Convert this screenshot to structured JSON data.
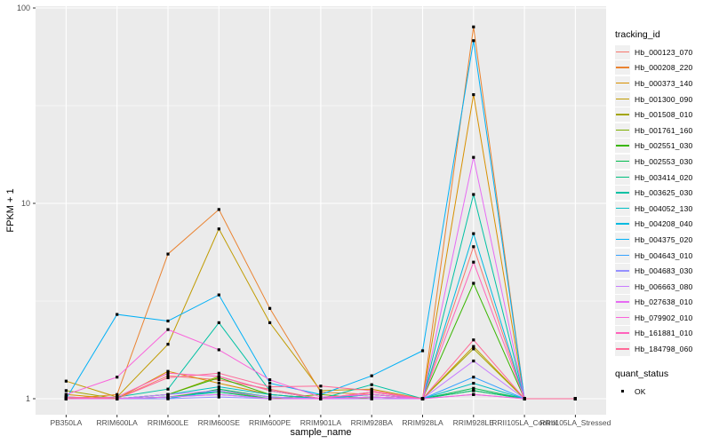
{
  "axes": {
    "y_title": "FPKM + 1",
    "x_title": "sample_name"
  },
  "legend": {
    "tracking_title": "tracking_id",
    "quant_title": "quant_status",
    "quant_items": [
      {
        "label": "OK",
        "shape": "filled-square",
        "color": "#000000"
      }
    ]
  },
  "chart_data": {
    "type": "line",
    "title": "",
    "xlabel": "sample_name",
    "ylabel": "FPKM + 1",
    "y_scale": "log10",
    "ylim": [
      1,
      100
    ],
    "y_ticks": [
      1,
      10,
      100
    ],
    "y_tick_labels": [
      "1",
      "10",
      "100"
    ],
    "y_minor_breaks": [
      3.1623,
      31.6228
    ],
    "grid": "on",
    "legend_position": "right",
    "panel_bg": "#EBEBEB",
    "grid_color": "#FFFFFF",
    "tick_text_color": "#4D4D4D",
    "tick_mark_color": "#333333",
    "point_marker": {
      "shape": "square",
      "color": "#000000",
      "size": 3.2
    },
    "categories": [
      "PB350LA",
      "RRIM600LA",
      "RRIM600LE",
      "RRIM600SE",
      "RRIM600PE",
      "RRIM901LA",
      "RRIM928BA",
      "RRIM928LA",
      "RRIM928LE",
      "RRII105LA_Control",
      "RRII105LA_Stressed"
    ],
    "series": [
      {
        "name": "Hb_000123_070",
        "color": "#F8766D",
        "values": [
          1.02,
          1.0,
          1.31,
          1.25,
          1.12,
          1.0,
          1.05,
          1.0,
          6.0,
          1.0,
          1.0
        ]
      },
      {
        "name": "Hb_000208_220",
        "color": "#EA8331",
        "values": [
          1.0,
          1.05,
          5.5,
          9.3,
          2.9,
          1.08,
          1.05,
          1.0,
          80,
          1.0,
          1.0
        ]
      },
      {
        "name": "Hb_000373_140",
        "color": "#D89000",
        "values": [
          1.05,
          1.0,
          1.38,
          1.2,
          1.05,
          1.0,
          1.08,
          1.0,
          36,
          1.0,
          1.0
        ]
      },
      {
        "name": "Hb_001300_090",
        "color": "#C09B00",
        "values": [
          1.23,
          1.02,
          1.9,
          7.4,
          2.45,
          1.1,
          1.12,
          1.0,
          1.85,
          1.0,
          1.0
        ]
      },
      {
        "name": "Hb_001508_010",
        "color": "#A3A500",
        "values": [
          1.1,
          1.0,
          1.05,
          1.3,
          1.1,
          1.0,
          1.02,
          1.0,
          1.8,
          1.0,
          1.0
        ]
      },
      {
        "name": "Hb_001761_160",
        "color": "#7CAE00",
        "values": [
          1.0,
          1.0,
          1.02,
          1.1,
          1.0,
          1.05,
          1.0,
          1.0,
          1.1,
          1.0,
          1.0
        ]
      },
      {
        "name": "Hb_002551_030",
        "color": "#39B600",
        "values": [
          1.0,
          1.0,
          1.05,
          1.28,
          1.05,
          1.0,
          1.02,
          1.0,
          3.9,
          1.0,
          1.0
        ]
      },
      {
        "name": "Hb_002553_030",
        "color": "#00BB4E",
        "values": [
          1.0,
          1.0,
          1.0,
          1.12,
          1.02,
          1.0,
          1.0,
          1.0,
          1.13,
          1.0,
          1.0
        ]
      },
      {
        "name": "Hb_003414_020",
        "color": "#00BF7D",
        "values": [
          1.0,
          1.0,
          1.02,
          1.08,
          1.0,
          1.0,
          1.05,
          1.0,
          1.1,
          1.0,
          1.0
        ]
      },
      {
        "name": "Hb_003625_030",
        "color": "#00C1A3",
        "values": [
          1.0,
          1.02,
          1.12,
          2.45,
          1.1,
          1.0,
          1.18,
          1.0,
          11.1,
          1.0,
          1.0
        ]
      },
      {
        "name": "Hb_004052_130",
        "color": "#00BFC4",
        "values": [
          1.02,
          1.0,
          1.05,
          1.15,
          1.05,
          1.0,
          1.0,
          1.0,
          1.2,
          1.0,
          1.0
        ]
      },
      {
        "name": "Hb_004208_040",
        "color": "#00BAE0",
        "values": [
          1.0,
          1.0,
          1.0,
          1.1,
          1.02,
          1.0,
          1.05,
          1.0,
          7.0,
          1.0,
          1.0
        ]
      },
      {
        "name": "Hb_004375_020",
        "color": "#00B0F6",
        "values": [
          1.0,
          2.7,
          2.5,
          3.4,
          1.2,
          1.05,
          1.31,
          1.76,
          68,
          1.0,
          1.0
        ]
      },
      {
        "name": "Hb_004643_010",
        "color": "#35A2FF",
        "values": [
          1.0,
          1.0,
          1.02,
          1.05,
          1.0,
          1.0,
          1.0,
          1.0,
          1.29,
          1.0,
          1.0
        ]
      },
      {
        "name": "Hb_004683_030",
        "color": "#9590FF",
        "values": [
          1.0,
          1.0,
          1.0,
          1.02,
          1.0,
          1.0,
          1.02,
          1.0,
          1.05,
          1.0,
          1.0
        ]
      },
      {
        "name": "Hb_006663_080",
        "color": "#C77CFF",
        "values": [
          1.02,
          1.0,
          1.05,
          1.1,
          1.02,
          1.0,
          1.0,
          1.0,
          1.56,
          1.0,
          1.0
        ]
      },
      {
        "name": "Hb_027638_010",
        "color": "#E76BF3",
        "values": [
          1.0,
          1.0,
          1.02,
          1.05,
          1.0,
          1.0,
          1.02,
          1.0,
          17.2,
          1.0,
          1.0
        ]
      },
      {
        "name": "Hb_079902_010",
        "color": "#FA62DB",
        "values": [
          1.05,
          1.29,
          2.26,
          1.78,
          1.25,
          1.02,
          1.05,
          1.0,
          1.05,
          1.0,
          1.0
        ]
      },
      {
        "name": "Hb_161881_010",
        "color": "#FF62BC",
        "values": [
          1.0,
          1.02,
          1.35,
          1.3,
          1.1,
          1.0,
          1.08,
          1.0,
          5.0,
          1.0,
          1.0
        ]
      },
      {
        "name": "Hb_184798_060",
        "color": "#FF6A98",
        "values": [
          1.02,
          1.0,
          1.28,
          1.35,
          1.15,
          1.16,
          1.1,
          1.0,
          2.0,
          1.0,
          1.0
        ]
      }
    ]
  }
}
